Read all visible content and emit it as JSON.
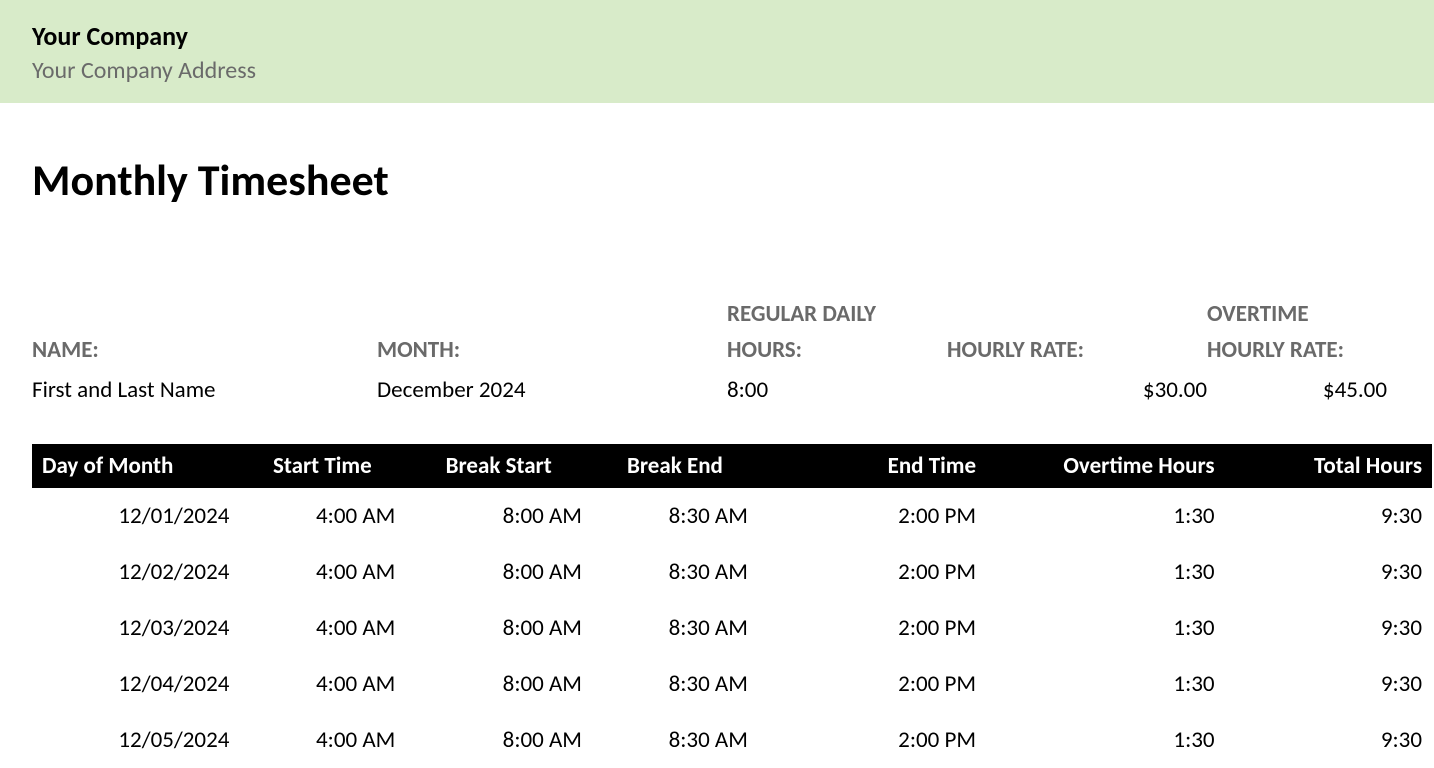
{
  "header": {
    "company_name": "Your Company",
    "company_address": "Your Company Address",
    "banner_bg": "#d8ebc9"
  },
  "title": "Monthly Timesheet",
  "info": {
    "name_label": "NAME:",
    "name_value": "First and Last Name",
    "month_label": "MONTH:",
    "month_value": "December 2024",
    "regular_hours_label_line1": "REGULAR DAILY",
    "regular_hours_label_line2": "HOURS:",
    "regular_hours_value": "8:00",
    "hourly_rate_label": "HOURLY RATE:",
    "hourly_rate_value": "$30.00",
    "ot_rate_label_line1": "OVERTIME",
    "ot_rate_label_line2": "HOURLY RATE:",
    "ot_rate_value": "$45.00",
    "label_color": "#6a6a6a",
    "label_fontsize": 23
  },
  "table": {
    "header_bg": "#000000",
    "header_fg": "#ffffff",
    "columns": {
      "day": "Day of Month",
      "start": "Start Time",
      "break_start": "Break Start",
      "break_end": "Break End",
      "end": "End Time",
      "ot": "Overtime Hours",
      "total": "Total Hours"
    },
    "rows": [
      {
        "day": "12/01/2024",
        "start": "4:00 AM",
        "break_start": "8:00 AM",
        "break_end": "8:30 AM",
        "end": "2:00 PM",
        "ot": "1:30",
        "total": "9:30"
      },
      {
        "day": "12/02/2024",
        "start": "4:00 AM",
        "break_start": "8:00 AM",
        "break_end": "8:30 AM",
        "end": "2:00 PM",
        "ot": "1:30",
        "total": "9:30"
      },
      {
        "day": "12/03/2024",
        "start": "4:00 AM",
        "break_start": "8:00 AM",
        "break_end": "8:30 AM",
        "end": "2:00 PM",
        "ot": "1:30",
        "total": "9:30"
      },
      {
        "day": "12/04/2024",
        "start": "4:00 AM",
        "break_start": "8:00 AM",
        "break_end": "8:30 AM",
        "end": "2:00 PM",
        "ot": "1:30",
        "total": "9:30"
      },
      {
        "day": "12/05/2024",
        "start": "4:00 AM",
        "break_start": "8:00 AM",
        "break_end": "8:30 AM",
        "end": "2:00 PM",
        "ot": "1:30",
        "total": "9:30"
      }
    ]
  }
}
